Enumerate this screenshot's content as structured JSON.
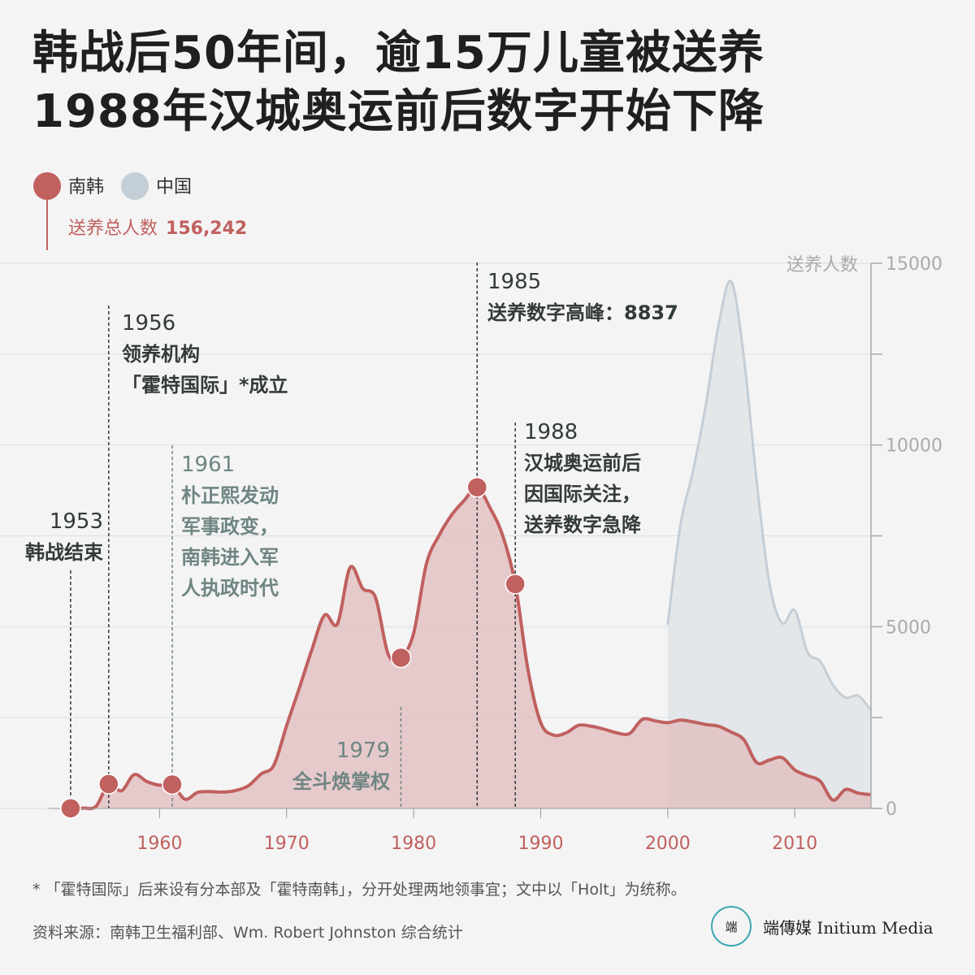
{
  "title": {
    "line1": "韩战后50年间，逾15万儿童被送养",
    "line2": "1988年汉城奥运前后数字开始下降"
  },
  "total": {
    "label": "送养总人数",
    "value": "156,242"
  },
  "colors": {
    "korea": "#c0605f",
    "korea_fill": "#e2bcbe",
    "china": "#c4ced7",
    "china_fill": "#dfe4e8",
    "annotation_dark": "#333a3a",
    "annotation_gray": "#6e8583",
    "axis": "#aaaaaa",
    "tick_x": "#c0605f",
    "tick_y": "#aaaaaa"
  },
  "chart_data": {
    "type": "area",
    "xlabel": "",
    "ylabel": "送养人数",
    "xlim": [
      1950,
      2016
    ],
    "ylim": [
      0,
      15000
    ],
    "x_ticks": [
      1960,
      1970,
      1980,
      1990,
      2000,
      2010
    ],
    "y_ticks": [
      0,
      5000,
      10000,
      15000
    ],
    "grid": true,
    "legend_position": "top-left",
    "series": [
      {
        "name": "南韩",
        "points": [
          [
            1953,
            4
          ],
          [
            1954,
            10
          ],
          [
            1955,
            60
          ],
          [
            1956,
            671
          ],
          [
            1957,
            486
          ],
          [
            1958,
            930
          ],
          [
            1959,
            741
          ],
          [
            1960,
            638
          ],
          [
            1961,
            660
          ],
          [
            1962,
            254
          ],
          [
            1963,
            442
          ],
          [
            1964,
            462
          ],
          [
            1965,
            451
          ],
          [
            1966,
            494
          ],
          [
            1967,
            626
          ],
          [
            1968,
            949
          ],
          [
            1969,
            1190
          ],
          [
            1970,
            2275
          ],
          [
            1971,
            3310
          ],
          [
            1972,
            4380
          ],
          [
            1973,
            5320
          ],
          [
            1974,
            5080
          ],
          [
            1975,
            6630
          ],
          [
            1976,
            6050
          ],
          [
            1977,
            5800
          ],
          [
            1978,
            4240
          ],
          [
            1979,
            4148
          ],
          [
            1980,
            4820
          ],
          [
            1981,
            6720
          ],
          [
            1982,
            7510
          ],
          [
            1983,
            8080
          ],
          [
            1984,
            8480
          ],
          [
            1985,
            8837
          ],
          [
            1986,
            8280
          ],
          [
            1987,
            7520
          ],
          [
            1988,
            6173
          ],
          [
            1989,
            3820
          ],
          [
            1990,
            2360
          ],
          [
            1991,
            2020
          ],
          [
            1992,
            2080
          ],
          [
            1993,
            2290
          ],
          [
            1994,
            2260
          ],
          [
            1995,
            2180
          ],
          [
            1996,
            2080
          ],
          [
            1997,
            2060
          ],
          [
            1998,
            2450
          ],
          [
            1999,
            2410
          ],
          [
            2000,
            2360
          ],
          [
            2001,
            2430
          ],
          [
            2002,
            2380
          ],
          [
            2003,
            2310
          ],
          [
            2004,
            2260
          ],
          [
            2005,
            2100
          ],
          [
            2006,
            1890
          ],
          [
            2007,
            1260
          ],
          [
            2008,
            1330
          ],
          [
            2009,
            1400
          ],
          [
            2010,
            1060
          ],
          [
            2011,
            900
          ],
          [
            2012,
            750
          ],
          [
            2013,
            230
          ],
          [
            2014,
            520
          ],
          [
            2015,
            420
          ],
          [
            2016,
            380
          ]
        ]
      },
      {
        "name": "中国",
        "points": [
          [
            2000,
            5050
          ],
          [
            2001,
            7800
          ],
          [
            2002,
            9300
          ],
          [
            2003,
            11100
          ],
          [
            2004,
            13300
          ],
          [
            2005,
            14500
          ],
          [
            2006,
            12400
          ],
          [
            2007,
            9000
          ],
          [
            2008,
            6200
          ],
          [
            2009,
            5100
          ],
          [
            2010,
            5450
          ],
          [
            2011,
            4300
          ],
          [
            2012,
            4050
          ],
          [
            2013,
            3400
          ],
          [
            2014,
            3050
          ],
          [
            2015,
            3100
          ],
          [
            2016,
            2700
          ]
        ]
      }
    ],
    "highlight_points": [
      {
        "year": 1953,
        "value": 4
      },
      {
        "year": 1956,
        "value": 671
      },
      {
        "year": 1961,
        "value": 660
      },
      {
        "year": 1979,
        "value": 4148
      },
      {
        "year": 1985,
        "value": 8837
      },
      {
        "year": 1988,
        "value": 6173
      }
    ],
    "annotations": [
      {
        "year": "1953",
        "lines": [
          "韩战结束"
        ],
        "style": "dark"
      },
      {
        "year": "1956",
        "lines": [
          "领养机构",
          "「霍特国际」*成立"
        ],
        "style": "dark"
      },
      {
        "year": "1961",
        "lines": [
          "朴正熙发动",
          "军事政变，",
          "南韩进入军",
          "人执政时代"
        ],
        "style": "gray"
      },
      {
        "year": "1979",
        "lines": [
          "全斗焕掌权"
        ],
        "style": "gray"
      },
      {
        "year": "1985",
        "lines": [
          "送养数字高峰：8837"
        ],
        "style": "dark"
      },
      {
        "year": "1988",
        "lines": [
          "汉城奥运前后",
          "因国际关注，",
          "送养数字急降"
        ],
        "style": "dark"
      }
    ]
  },
  "footnote": "* 「霍特国际」后来设有分本部及「霍特南韩」，分开处理两地领事宜；文中以「Holt」为统称。",
  "source": "资料来源：南韩卫生福利部、Wm. Robert Johnston 综合统计",
  "brand": {
    "logo_text": "端",
    "name": "端傳媒 Initium Media"
  }
}
